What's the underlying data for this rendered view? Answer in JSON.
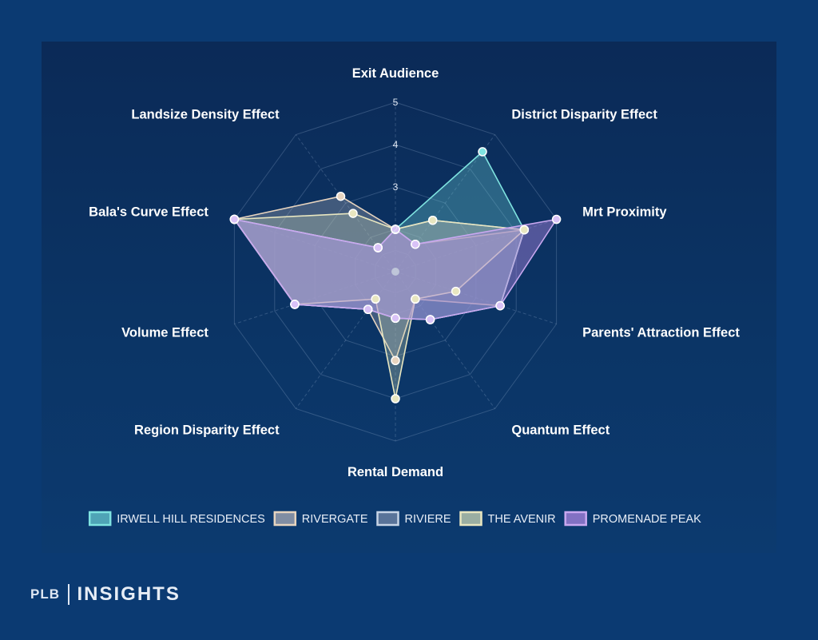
{
  "chart_data": {
    "type": "radar",
    "axes": [
      "Exit Audience",
      "District Disparity Effect",
      "Mrt Proximity",
      "Parents' Attraction Effect",
      "Quantum Effect",
      "Rental Demand",
      "Region Disparity Effect",
      "Volume Effect",
      "Bala's Curve Effect",
      "Landsize Density Effect"
    ],
    "rlim": [
      1,
      5
    ],
    "ticks": [
      2,
      3,
      4,
      5
    ],
    "series": [
      {
        "name": "IRWELL HILL RESIDENCES",
        "values": [
          2,
          4.5,
          4.2,
          3.6,
          2.4,
          2.1,
          2.1,
          3.5,
          5,
          1.7
        ],
        "stroke": "#7fe3e0",
        "fill": "#66c8cf",
        "fill_opacity": 0.35,
        "point": "#7fe3e0"
      },
      {
        "name": "RIVERGATE",
        "values": [
          2,
          1.8,
          4.2,
          3.6,
          1.8,
          3.1,
          2.1,
          3.5,
          5,
          3.2
        ],
        "stroke": "#e7d4bf",
        "fill": "#a7a9b5",
        "fill_opacity": 0.35,
        "point": "#e7d4bf"
      },
      {
        "name": "RIVIERE",
        "values": [
          2,
          2.5,
          4.2,
          3.6,
          2.4,
          2.1,
          2.1,
          3.5,
          5,
          1.7
        ],
        "stroke": "#c7d4e6",
        "fill": "#7387a8",
        "fill_opacity": 0.3,
        "point": "#c7d4e6"
      },
      {
        "name": "THE AVENIR",
        "values": [
          2,
          2.5,
          4.2,
          2.5,
          1.8,
          4,
          1.8,
          3.5,
          5,
          2.7
        ],
        "stroke": "#e8e6c0",
        "fill": "#c9d6b4",
        "fill_opacity": 0.3,
        "point": "#e8e6c0"
      },
      {
        "name": "PROMENADE PEAK",
        "values": [
          2,
          1.8,
          5,
          3.6,
          2.4,
          2.1,
          2.1,
          3.5,
          5,
          1.7
        ],
        "stroke": "#c9a8f0",
        "fill": "#a984e0",
        "fill_opacity": 0.45,
        "point": "#d9c2f7"
      }
    ],
    "legend_placement": "bottom"
  },
  "brand": {
    "left": "PLB",
    "right": "INSIGHTS"
  }
}
